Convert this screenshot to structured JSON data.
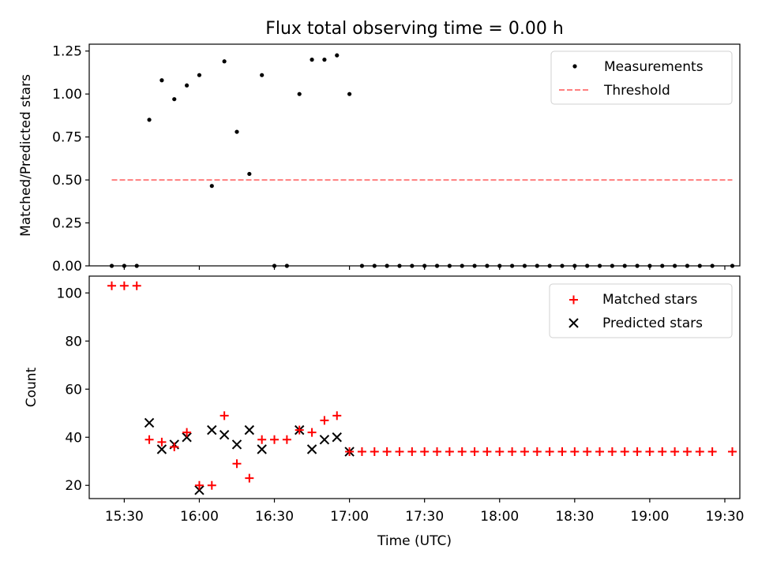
{
  "title": "Flux total observing time = 0.00 h",
  "colors": {
    "measurement": "#000000",
    "threshold": "#ff7f7f",
    "matched": "#ff0000",
    "predicted": "#000000",
    "axes": "#000000"
  },
  "chart_data": [
    {
      "type": "scatter",
      "ylabel": "Matched/Predicted stars",
      "xlabel": "",
      "xlim": [
        "15:16",
        "19:36"
      ],
      "ylim": [
        0,
        1.29
      ],
      "yticks": [
        0.0,
        0.25,
        0.5,
        0.75,
        1.0,
        1.25
      ],
      "ytick_labels": [
        "0.00",
        "0.25",
        "0.50",
        "0.75",
        "1.00",
        "1.25"
      ],
      "legend": {
        "placement": "top-right"
      },
      "series": [
        {
          "name": "Measurements",
          "marker": "dot",
          "x": [
            "15:25",
            "15:30",
            "15:35",
            "15:40",
            "15:45",
            "15:50",
            "15:55",
            "16:00",
            "16:05",
            "16:10",
            "16:15",
            "16:20",
            "16:25",
            "16:30",
            "16:35",
            "16:40",
            "16:45",
            "16:50",
            "16:55",
            "17:00",
            "17:05",
            "17:10",
            "17:15",
            "17:20",
            "17:25",
            "17:30",
            "17:35",
            "17:40",
            "17:45",
            "17:50",
            "17:55",
            "18:00",
            "18:05",
            "18:10",
            "18:15",
            "18:20",
            "18:25",
            "18:30",
            "18:35",
            "18:40",
            "18:45",
            "18:50",
            "18:55",
            "19:00",
            "19:05",
            "19:10",
            "19:15",
            "19:20",
            "19:25",
            "19:33"
          ],
          "y": [
            0,
            0,
            0,
            0.85,
            1.08,
            0.97,
            1.05,
            1.11,
            0.465,
            1.19,
            0.78,
            0.535,
            1.11,
            0,
            0,
            1.0,
            1.2,
            1.2,
            1.225,
            1.0,
            0,
            0,
            0,
            0,
            0,
            0,
            0,
            0,
            0,
            0,
            0,
            0,
            0,
            0,
            0,
            0,
            0,
            0,
            0,
            0,
            0,
            0,
            0,
            0,
            0,
            0,
            0,
            0,
            0,
            0
          ]
        },
        {
          "name": "Threshold",
          "style": "dashed",
          "x": [
            "15:25",
            "19:33"
          ],
          "y": [
            0.5,
            0.5
          ]
        }
      ]
    },
    {
      "type": "scatter",
      "ylabel": "Count",
      "xlabel": "Time (UTC)",
      "xlim": [
        "15:16",
        "19:36"
      ],
      "ylim": [
        14.5,
        107
      ],
      "yticks": [
        20,
        40,
        60,
        80,
        100
      ],
      "ytick_labels": [
        "20",
        "40",
        "60",
        "80",
        "100"
      ],
      "xticks": [
        "15:30",
        "16:00",
        "16:30",
        "17:00",
        "17:30",
        "18:00",
        "18:30",
        "19:00",
        "19:30"
      ],
      "legend": {
        "placement": "top-right"
      },
      "series": [
        {
          "name": "Matched stars",
          "marker": "plus",
          "x": [
            "15:25",
            "15:30",
            "15:35",
            "15:40",
            "15:45",
            "15:50",
            "15:55",
            "16:00",
            "16:05",
            "16:10",
            "16:15",
            "16:20",
            "16:25",
            "16:30",
            "16:35",
            "16:40",
            "16:45",
            "16:50",
            "16:55",
            "17:00",
            "17:05",
            "17:10",
            "17:15",
            "17:20",
            "17:25",
            "17:30",
            "17:35",
            "17:40",
            "17:45",
            "17:50",
            "17:55",
            "18:00",
            "18:05",
            "18:10",
            "18:15",
            "18:20",
            "18:25",
            "18:30",
            "18:35",
            "18:40",
            "18:45",
            "18:50",
            "18:55",
            "19:00",
            "19:05",
            "19:10",
            "19:15",
            "19:20",
            "19:25",
            "19:33"
          ],
          "y": [
            103,
            103,
            103,
            39,
            38,
            36,
            42,
            20,
            20,
            49,
            29,
            23,
            39,
            39,
            39,
            43,
            42,
            47,
            49,
            34,
            34,
            34,
            34,
            34,
            34,
            34,
            34,
            34,
            34,
            34,
            34,
            34,
            34,
            34,
            34,
            34,
            34,
            34,
            34,
            34,
            34,
            34,
            34,
            34,
            34,
            34,
            34,
            34,
            34,
            34
          ]
        },
        {
          "name": "Predicted stars",
          "marker": "x",
          "x": [
            "15:40",
            "15:45",
            "15:50",
            "15:55",
            "16:00",
            "16:05",
            "16:10",
            "16:15",
            "16:20",
            "16:25",
            "16:40",
            "16:45",
            "16:50",
            "16:55",
            "17:00"
          ],
          "y": [
            46,
            35,
            37,
            40,
            18,
            43,
            41,
            37,
            43,
            35,
            43,
            35,
            39,
            40,
            34
          ]
        }
      ]
    }
  ]
}
